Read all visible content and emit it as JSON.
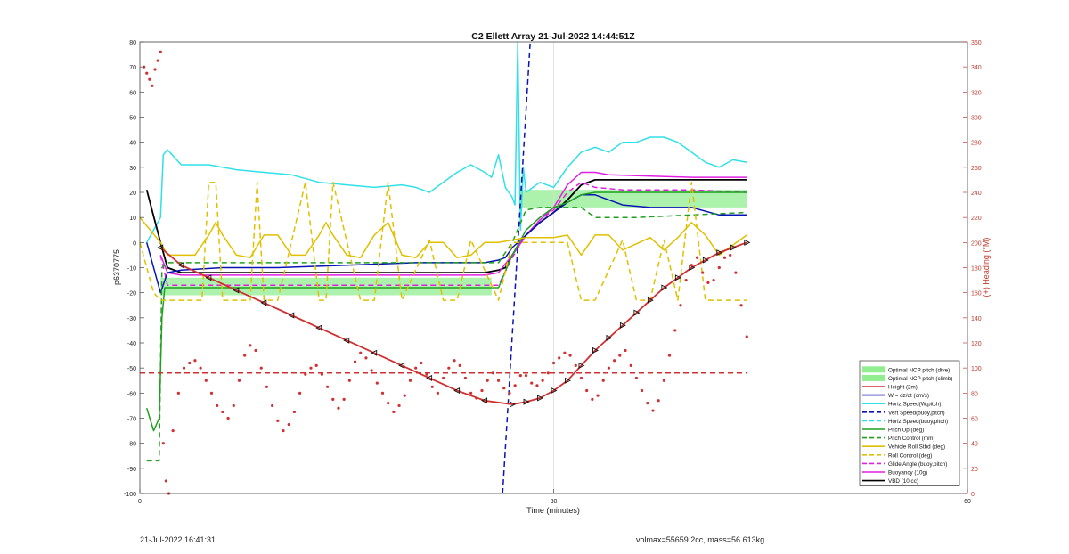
{
  "footer": {
    "left": "21-Jul-2022 16:41:31",
    "right": "volmax=55659.2cc, mass=56.613kg"
  },
  "chart_data": {
    "type": "line",
    "title": "C2 Ellett Array 21-Jul-2022 14:44:51Z",
    "xlabel": "Time (minutes)",
    "ylabel_left": "p6370775",
    "ylabel_right": "(+) Heading (°M)",
    "xlim": [
      0,
      60
    ],
    "ylim_left": [
      -100,
      80
    ],
    "ylim_right": [
      0,
      360
    ],
    "xticks": [
      0,
      30,
      60
    ],
    "yticks_left": [
      -100,
      -90,
      -80,
      -70,
      -60,
      -50,
      -40,
      -30,
      -20,
      -10,
      0,
      10,
      20,
      30,
      40,
      50,
      60,
      70,
      80
    ],
    "yticks_right": [
      0,
      20,
      40,
      60,
      80,
      100,
      120,
      140,
      160,
      180,
      200,
      220,
      240,
      260,
      280,
      300,
      320,
      340,
      360
    ],
    "grid": "vertical at x=30",
    "legend_position": "bottom-right",
    "legend": [
      {
        "label": "Optimal NCP pitch (dive)",
        "color": "#90ee90",
        "style": "patch"
      },
      {
        "label": "Optimal NCP pitch (climb)",
        "color": "#90ee90",
        "style": "patch"
      },
      {
        "label": "Height (2m)",
        "color": "#d03030",
        "style": "solid"
      },
      {
        "label": "W = dz/dt (cm/s)",
        "color": "#0a14b4",
        "style": "solid"
      },
      {
        "label": "Horiz Speed(W,pitch)",
        "color": "#30e0e8",
        "style": "solid"
      },
      {
        "label": "Vert Speed(buoy,pitch)",
        "color": "#0a14b4",
        "style": "dashed"
      },
      {
        "label": "Horiz Speed(buoy,pitch)",
        "color": "#30e0e8",
        "style": "dashed"
      },
      {
        "label": "Pitch Up (deg)",
        "color": "#1fa01f",
        "style": "solid"
      },
      {
        "label": "Pitch Control (mm)",
        "color": "#1fa01f",
        "style": "dashed"
      },
      {
        "label": "Vehicle Roll Stbd (deg)",
        "color": "#e0c000",
        "style": "solid"
      },
      {
        "label": "Roll Control (deg)",
        "color": "#e0c000",
        "style": "dashed"
      },
      {
        "label": "Glide Angle (buoy,pitch)",
        "color": "#e020e0",
        "style": "dashed"
      },
      {
        "label": "Buoyancy (10g)",
        "color": "#e020e0",
        "style": "solid"
      },
      {
        "label": "VBD (10 cc)",
        "color": "#000000",
        "style": "solid"
      }
    ],
    "ncp_bands": [
      {
        "name": "dive",
        "x": [
          1.5,
          25.5
        ],
        "y": [
          -21,
          -14
        ]
      },
      {
        "name": "climb",
        "x": [
          27.5,
          44
        ],
        "y": [
          14,
          21
        ]
      }
    ],
    "series": [
      {
        "key": "horiz",
        "style": "solid",
        "x": [
          0.5,
          1.5,
          1.7,
          2,
          3,
          5,
          7,
          9,
          11,
          13,
          15,
          17,
          19,
          20,
          21,
          22,
          23,
          24,
          25,
          25.5,
          26,
          26.5,
          27,
          27.2,
          27.4,
          27.6,
          27.8,
          28,
          28.5,
          29,
          30,
          31,
          32,
          33,
          34,
          35,
          36,
          37,
          38,
          39,
          40,
          41,
          42,
          43,
          44
        ],
        "y": [
          0,
          10,
          35,
          37,
          31,
          31,
          29,
          28,
          27,
          24,
          23,
          22,
          23,
          22,
          20,
          24,
          28,
          31,
          28,
          26,
          35,
          22,
          18,
          15,
          80,
          5,
          30,
          20,
          22,
          24,
          22,
          30,
          36,
          38,
          36,
          40,
          40,
          42,
          42,
          40,
          36,
          32,
          30,
          33,
          32
        ]
      },
      {
        "key": "vbd",
        "style": "solid",
        "x": [
          0.5,
          1.5,
          2,
          3,
          5,
          10,
          15,
          20,
          25,
          26,
          26.5,
          27,
          28,
          29,
          30,
          31,
          32,
          33,
          34,
          36,
          40,
          44
        ],
        "y": [
          21,
          0,
          -10,
          -12,
          -12,
          -12,
          -12,
          -12,
          -12,
          -11,
          -10,
          -5,
          3,
          8,
          12,
          17,
          23,
          25,
          25,
          25,
          25,
          25
        ]
      },
      {
        "key": "buoy",
        "style": "solid",
        "x": [
          1.5,
          2,
          3,
          10,
          20,
          25,
          26,
          27,
          28,
          29,
          30,
          31,
          32,
          33,
          34,
          40,
          44
        ],
        "y": [
          -5,
          -12,
          -13,
          -13,
          -13,
          -13,
          -12,
          -5,
          3,
          9,
          14,
          23,
          28,
          28,
          27,
          26,
          26
        ]
      },
      {
        "key": "w",
        "style": "solid",
        "x": [
          0.5,
          1.5,
          2,
          3,
          6,
          10,
          15,
          20,
          25,
          26,
          26.5,
          27,
          28,
          29,
          30,
          31,
          32,
          33,
          35,
          37,
          40,
          42,
          44
        ],
        "y": [
          0,
          -20,
          -12,
          -11,
          -10,
          -10,
          -9,
          -8,
          -8,
          -7,
          -6,
          -2,
          3,
          8,
          12,
          16,
          19,
          19,
          15,
          14,
          14,
          11,
          11
        ]
      },
      {
        "key": "pitch",
        "style": "solid",
        "x": [
          0.5,
          1,
          1.4,
          1.6,
          1.8,
          2,
          3,
          10,
          20,
          25,
          26,
          27,
          28,
          29,
          30,
          31,
          32,
          33,
          35,
          40,
          44
        ],
        "y": [
          -66,
          -75,
          -70,
          -30,
          -18,
          -18,
          -18,
          -18,
          -18,
          -18,
          -18,
          -5,
          5,
          10,
          14,
          16,
          19,
          20,
          20,
          20,
          20
        ]
      },
      {
        "key": "pitchctl",
        "style": "dashed",
        "x": [
          0.5,
          1,
          1.4,
          1.6,
          2,
          3,
          10,
          20,
          25,
          26,
          27,
          28,
          29,
          30,
          31,
          32,
          33,
          36,
          40,
          44
        ],
        "y": [
          -87,
          -87,
          -87,
          -10,
          -8,
          -8,
          -8,
          -8,
          -8,
          -8,
          0,
          13,
          14,
          14,
          14,
          14,
          10,
          10,
          11,
          12
        ]
      },
      {
        "key": "glide",
        "style": "dashed",
        "x": [
          1.5,
          2,
          3,
          10,
          20,
          25,
          26,
          27,
          28,
          29,
          30,
          31,
          32,
          33,
          35,
          40,
          44
        ],
        "y": [
          -5,
          -17,
          -17,
          -17,
          -17,
          -17,
          -17,
          -6,
          3,
          9,
          13,
          20,
          24,
          22,
          21,
          21,
          20
        ]
      },
      {
        "key": "vertspd",
        "style": "dashed",
        "x": [
          26.3,
          28.3
        ],
        "y": [
          -100,
          80
        ]
      },
      {
        "key": "roll",
        "style": "solid",
        "x": [
          0,
          1.5,
          2,
          3,
          4,
          5,
          5.5,
          6,
          7,
          8,
          9,
          10,
          11,
          12,
          13,
          13.5,
          14,
          15,
          16,
          17,
          18,
          19,
          20,
          21,
          22,
          23,
          24,
          25,
          26,
          27,
          28,
          30,
          31,
          32,
          33,
          34,
          35,
          37,
          38,
          39,
          40,
          41,
          42,
          44
        ],
        "y": [
          10,
          0,
          -5,
          -5,
          -5,
          3,
          8,
          3,
          -5,
          -6,
          3,
          3,
          -5,
          -5,
          3,
          8,
          3,
          -5,
          -6,
          3,
          8,
          -5,
          -6,
          0,
          0,
          -6,
          -5,
          0,
          0,
          1,
          2,
          2,
          3,
          -5,
          3,
          3,
          -3,
          2,
          -3,
          2,
          8,
          3,
          -5,
          3
        ]
      },
      {
        "key": "rollctl",
        "style": "dashed",
        "x": [
          0,
          1,
          1.5,
          2,
          3,
          4.5,
          5,
          5.5,
          6,
          8,
          8.5,
          9,
          10,
          12,
          13,
          13.5,
          14,
          16,
          17,
          18,
          19,
          21,
          22,
          23,
          24,
          26,
          27,
          30,
          31,
          32,
          33,
          35,
          36,
          37,
          38,
          39,
          40,
          41,
          42,
          44
        ],
        "y": [
          0,
          -20,
          -23,
          -23,
          -23,
          -23,
          24,
          24,
          -23,
          -23,
          24,
          -23,
          -23,
          24,
          -23,
          -23,
          24,
          -23,
          -23,
          24,
          -23,
          1,
          -23,
          -23,
          1,
          -23,
          0,
          0,
          0,
          -23,
          -23,
          1,
          -23,
          -23,
          1,
          -23,
          24,
          -23,
          -23,
          -23
        ]
      },
      {
        "key": "height",
        "style": "solid",
        "x": [
          1.5,
          3,
          5,
          7,
          9,
          11,
          13,
          15,
          17,
          19,
          21,
          23,
          25,
          27,
          28,
          29,
          30,
          31,
          32,
          33,
          34,
          35,
          36,
          37,
          38,
          39,
          40,
          41,
          42,
          43,
          44
        ],
        "y": [
          -2,
          -9,
          -14,
          -19,
          -24,
          -29,
          -34,
          -39,
          -44,
          -49,
          -54,
          -59,
          -63,
          -64.5,
          -63.5,
          -62,
          -59,
          -55,
          -49,
          -43,
          -38,
          -33,
          -28,
          -23,
          -18,
          -14,
          -10,
          -7,
          -4,
          -2,
          0
        ]
      },
      {
        "key": "heading",
        "style": "dots",
        "axis": "right",
        "x": [
          0.3,
          0.5,
          0.7,
          0.9,
          1.1,
          1.3,
          1.5,
          1.7,
          1.9,
          2.1,
          2.4,
          2.8,
          3.2,
          3.6,
          4.0,
          4.4,
          4.8,
          5.2,
          5.6,
          6.0,
          6.4,
          6.8,
          7.2,
          7.6,
          8.0,
          8.4,
          8.8,
          9.2,
          9.6,
          10.0,
          10.4,
          10.8,
          11.2,
          11.6,
          12.0,
          12.4,
          12.8,
          13.2,
          13.6,
          14.0,
          14.4,
          14.8,
          15.2,
          15.6,
          16.0,
          16.4,
          16.8,
          17.2,
          17.6,
          18.0,
          18.4,
          18.8,
          19.2,
          19.6,
          20.0,
          20.4,
          20.8,
          21.2,
          21.6,
          22.0,
          22.4,
          22.8,
          23.2,
          23.6,
          24.0,
          24.4,
          24.8,
          25.2,
          25.6,
          26.0,
          26.4,
          26.8,
          27.2,
          27.6,
          28.0,
          28.4,
          28.8,
          29.2,
          29.6,
          30.0,
          30.4,
          30.8,
          31.2,
          31.6,
          32.0,
          32.4,
          32.8,
          33.2,
          33.6,
          34.0,
          34.4,
          34.8,
          35.2,
          35.6,
          36.0,
          36.4,
          36.8,
          37.2,
          37.6,
          38.0,
          38.4,
          38.8,
          39.2,
          39.6,
          40.0,
          40.4,
          40.8,
          41.2,
          41.6,
          42.0,
          42.4,
          42.8,
          43.2,
          43.6,
          44.0
        ],
        "y": [
          340,
          335,
          330,
          325,
          338,
          345,
          352,
          40,
          10,
          0,
          50,
          80,
          100,
          104,
          106,
          100,
          90,
          80,
          70,
          65,
          60,
          70,
          90,
          110,
          118,
          114,
          100,
          85,
          70,
          58,
          50,
          55,
          65,
          80,
          95,
          100,
          102,
          95,
          85,
          75,
          68,
          75,
          90,
          105,
          112,
          108,
          98,
          88,
          80,
          72,
          65,
          70,
          78,
          90,
          100,
          104,
          95,
          85,
          80,
          92,
          100,
          106,
          102,
          92,
          80,
          76,
          82,
          90,
          96,
          90,
          84,
          80,
          86,
          94,
          94,
          88,
          86,
          90,
          96,
          104,
          108,
          112,
          110,
          102,
          92,
          82,
          75,
          78,
          90,
          100,
          106,
          110,
          114,
          102,
          92,
          82,
          72,
          66,
          74,
          90,
          110,
          130,
          150,
          170,
          182,
          188,
          176,
          168,
          170,
          180,
          188,
          190,
          176,
          150,
          125
        ]
      },
      {
        "key": "headingref",
        "style": "dashed",
        "axis": "right",
        "x": [
          0,
          44
        ],
        "y": [
          96,
          96
        ]
      }
    ]
  }
}
